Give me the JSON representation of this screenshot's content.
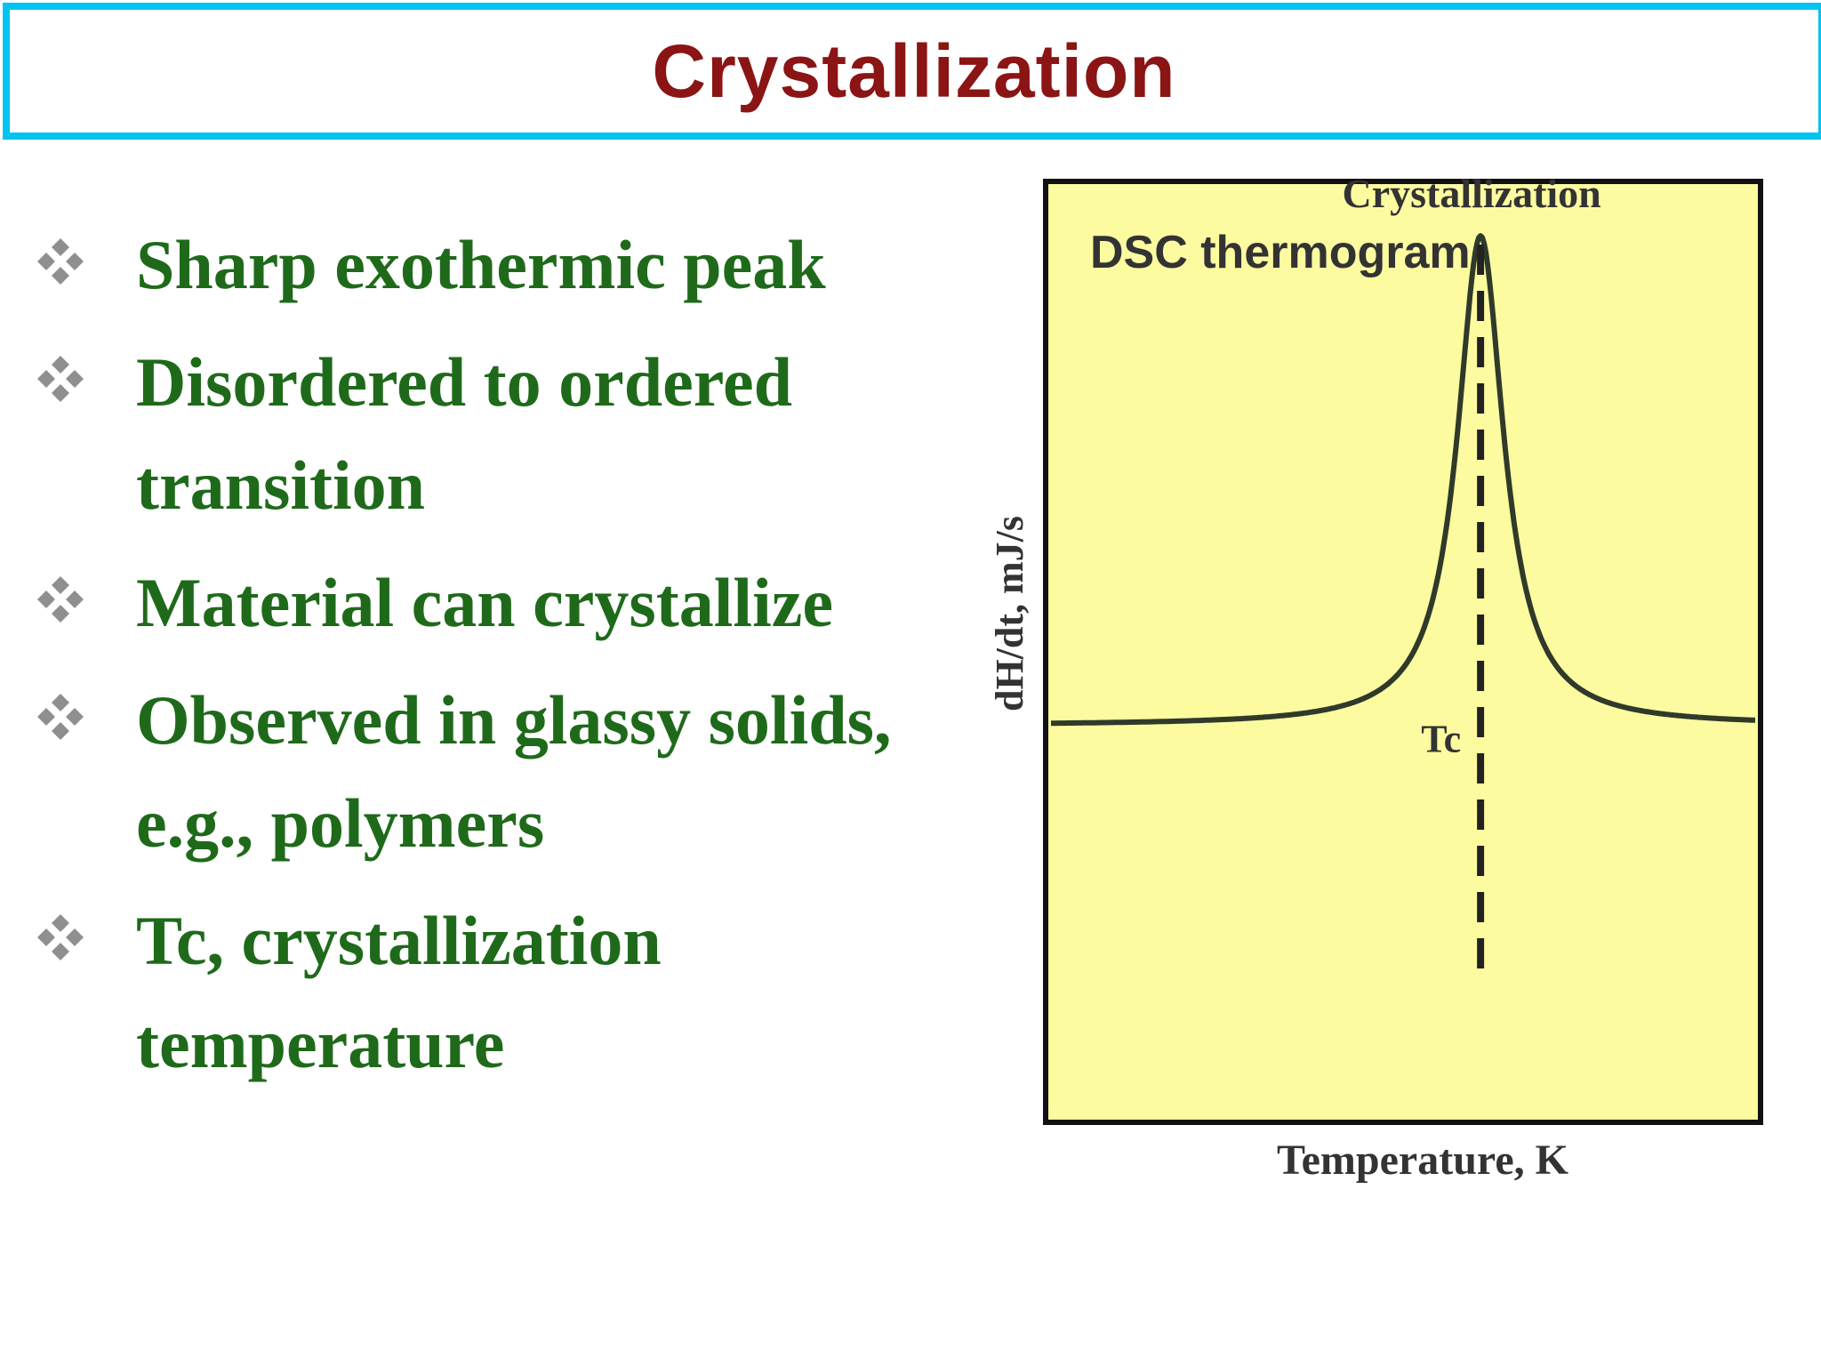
{
  "slide": {
    "title": "Crystallization",
    "bullets": [
      {
        "icon": "diamond-cluster-icon",
        "text": "Sharp exothermic peak"
      },
      {
        "icon": "diamond-cluster-icon",
        "text": "Disordered to ordered transition"
      },
      {
        "icon": "diamond-cluster-icon",
        "text": "Material can crystallize"
      },
      {
        "icon": "diamond-cluster-icon",
        "text": "Observed in glassy solids, e.g., polymers"
      },
      {
        "icon": "diamond-cluster-icon",
        "text": "Tc, crystallization temperature"
      }
    ]
  },
  "chart_data": {
    "type": "line",
    "title": "DSC thermogram",
    "xlabel": "Temperature, K",
    "ylabel": "dH/dt, mJ/s",
    "grid": false,
    "legend": "none",
    "annotations": [
      {
        "text": "Crystallization",
        "at": "peak"
      },
      {
        "text": "Tc",
        "at": "dashed vertical line through peak"
      }
    ],
    "series": [
      {
        "curve": "lorentzian-peak",
        "baseline": 0,
        "peak_x": 0.61,
        "peak_height": 1,
        "width": 0.04,
        "xlim": [
          0,
          1
        ],
        "ylim": [
          -0.8,
          1.1
        ]
      }
    ],
    "colors": {
      "plot_background": "#fdfba0",
      "frame": "#111111",
      "curve": "#2f3a2a",
      "text": "#333333",
      "bullet_text": "#1f6a1a",
      "title": "#8b1414",
      "title_border": "#00c3f0"
    }
  }
}
